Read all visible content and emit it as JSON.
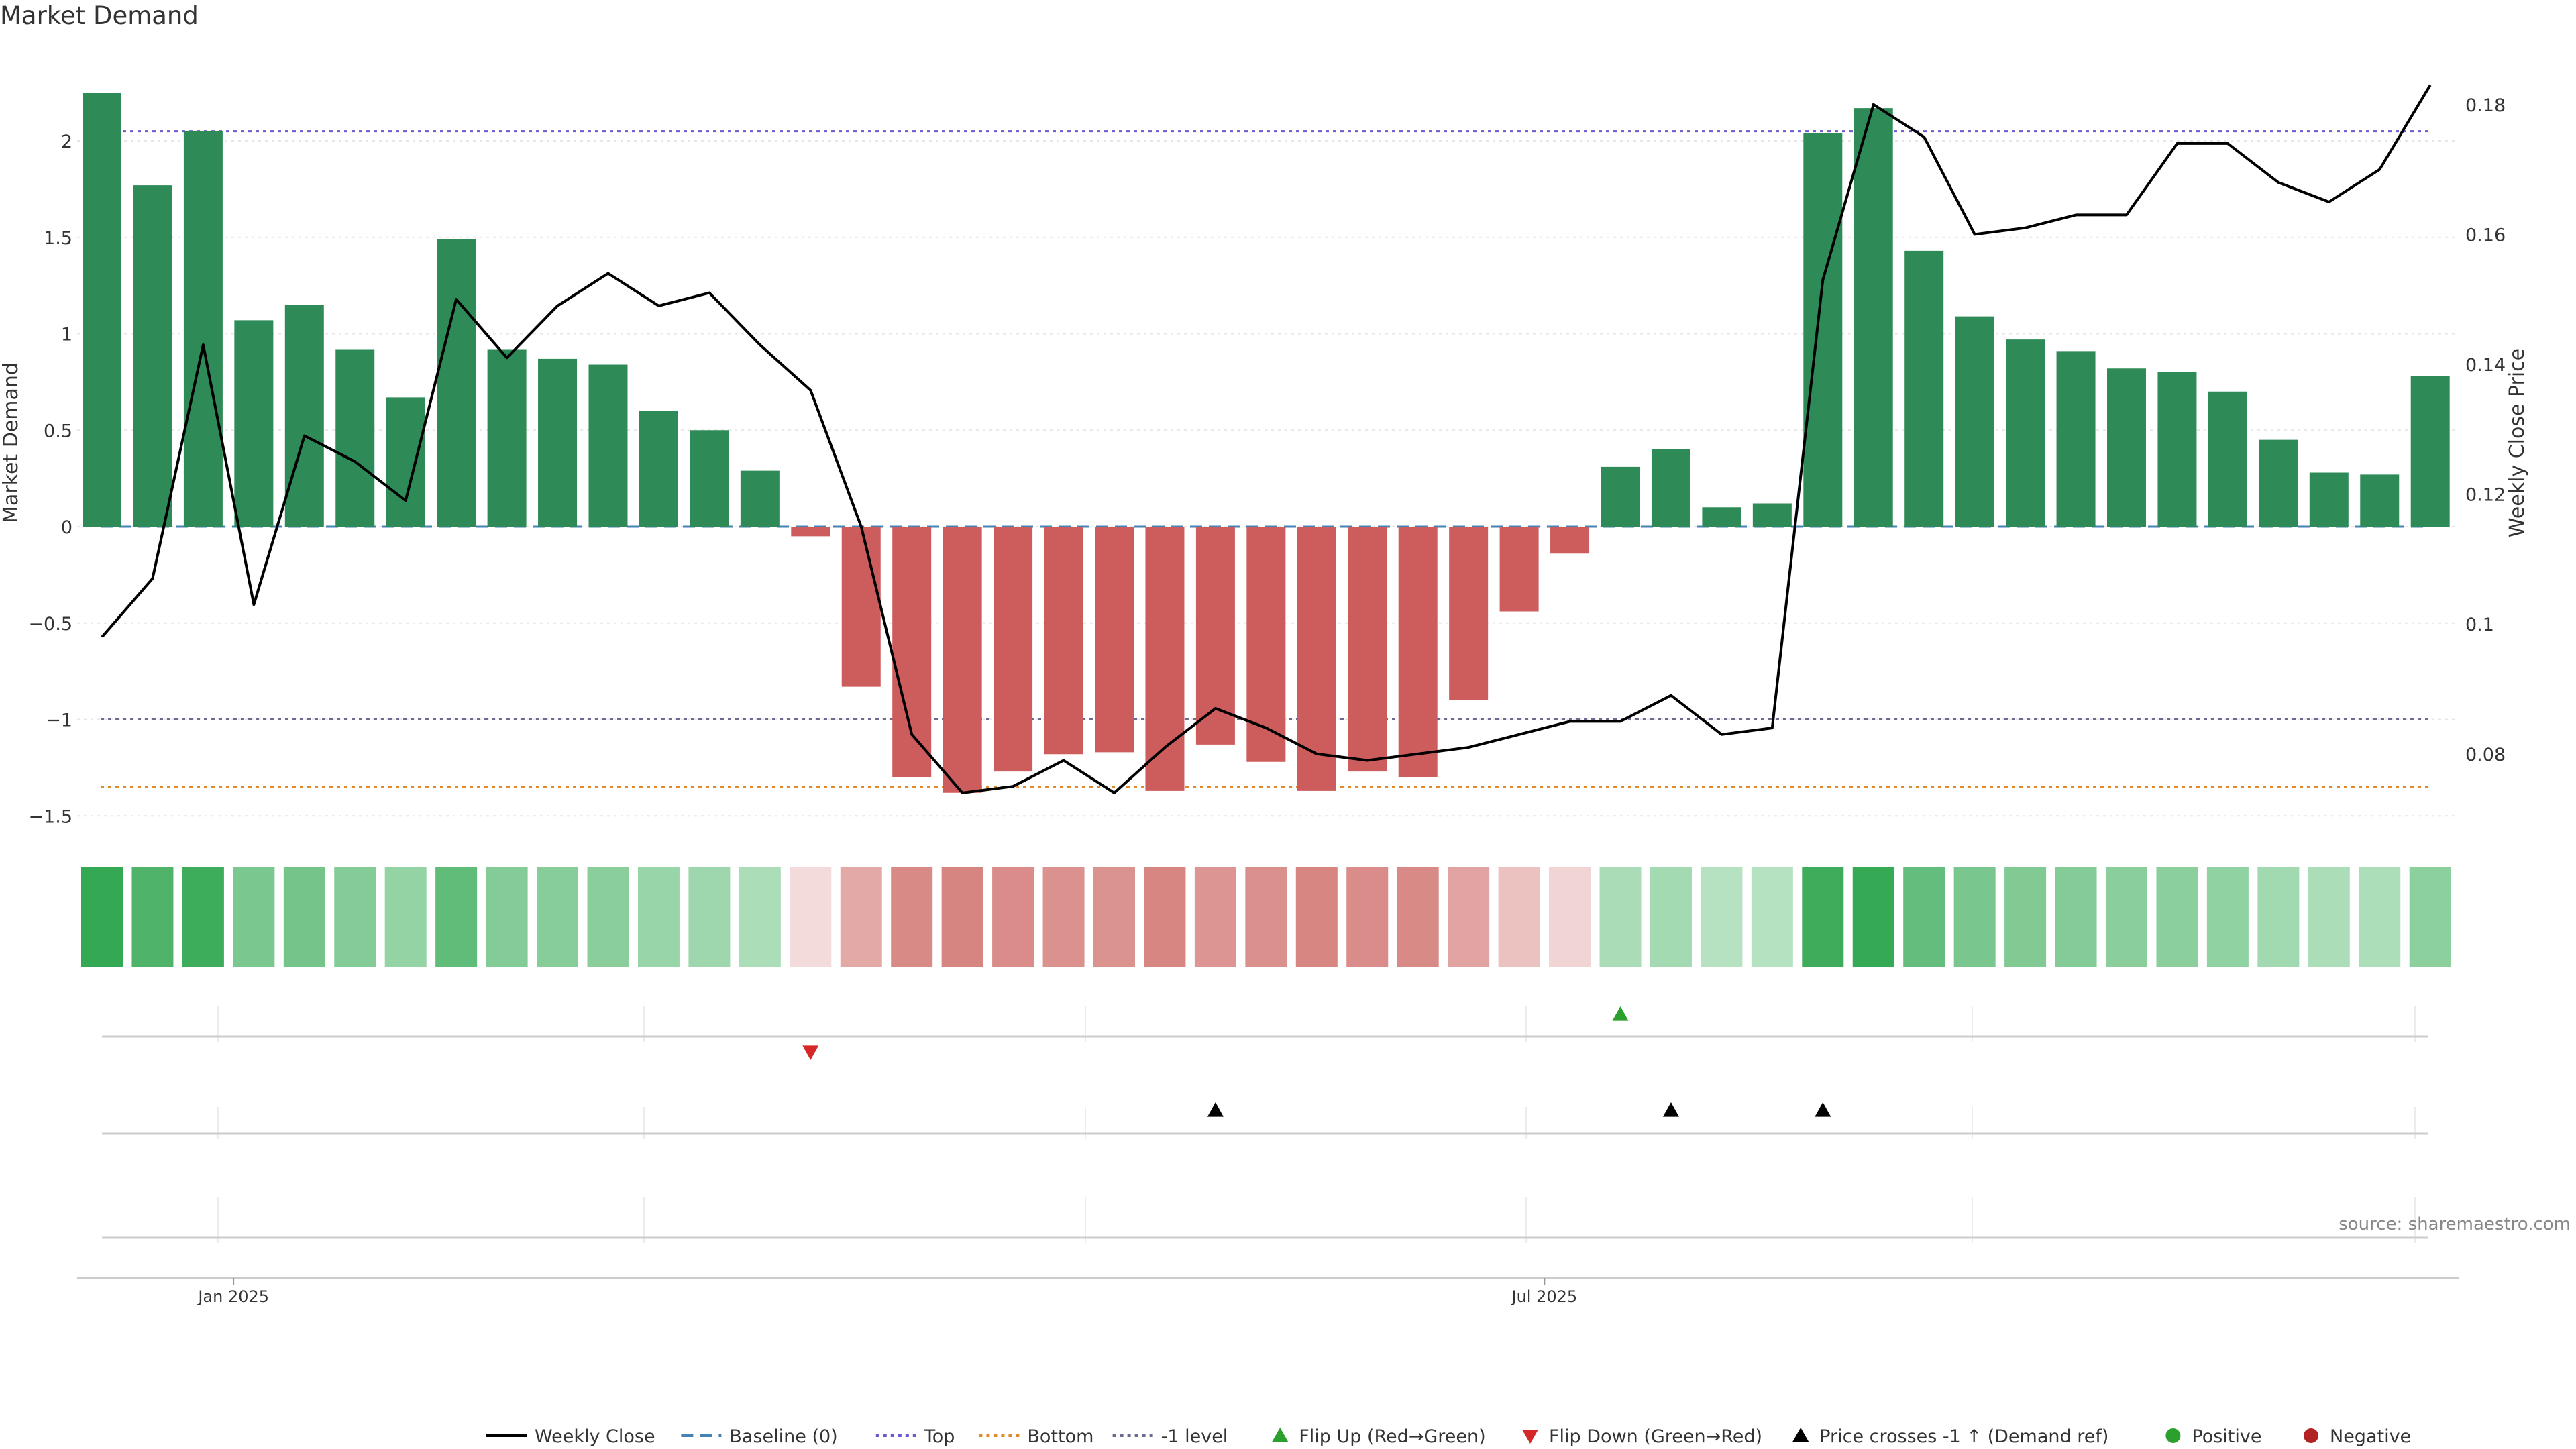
{
  "page_title": "Market Demand",
  "source_note": "source: sharemaestro.com",
  "chart_data": {
    "type": "bar",
    "title": "Market Demand",
    "xlabel": "",
    "ylabel": "Market Demand",
    "y2label": "Weekly Close Price",
    "ylim": [
      -1.75,
      2.3
    ],
    "y2lim": [
      0.068,
      0.186
    ],
    "yticks": [
      "2",
      "1.5",
      "1",
      "0.5",
      "0",
      "−0.5",
      "−1",
      "−1.5"
    ],
    "yticks_values": [
      2,
      1.5,
      1,
      0.5,
      0,
      -0.5,
      -1,
      -1.5
    ],
    "y2ticks": [
      "0.18",
      "0.16",
      "0.14",
      "0.12",
      "0.1",
      "0.08"
    ],
    "y2ticks_values": [
      0.18,
      0.16,
      0.14,
      0.12,
      0.1,
      0.08
    ],
    "xticks": [
      "Jan 2025",
      "Jul 2025"
    ],
    "xticks_week_index": [
      2.6,
      28.5
    ],
    "grid": true,
    "legend_position": "bottom",
    "levels": {
      "top": 2.05,
      "bottom": -1.35,
      "minus_one": -1,
      "baseline": 0
    },
    "weeks_count": 47,
    "demand": [
      2.25,
      1.77,
      2.05,
      1.07,
      1.15,
      0.92,
      0.67,
      1.49,
      0.92,
      0.87,
      0.84,
      0.6,
      0.5,
      0.29,
      -0.05,
      -0.83,
      -1.3,
      -1.38,
      -1.27,
      -1.18,
      -1.17,
      -1.37,
      -1.13,
      -1.22,
      -1.37,
      -1.27,
      -1.3,
      -0.9,
      -0.44,
      -0.14,
      0.31,
      0.4,
      0.1,
      0.12,
      2.04,
      2.17,
      1.43,
      1.09,
      0.97,
      0.91,
      0.82,
      0.8,
      0.7,
      0.45,
      0.28,
      0.27,
      0.78
    ],
    "weekly_close": [
      0.098,
      0.107,
      0.143,
      0.103,
      0.129,
      0.125,
      0.119,
      0.15,
      0.141,
      0.149,
      0.154,
      0.149,
      0.151,
      0.143,
      0.136,
      0.115,
      0.083,
      0.074,
      0.075,
      0.079,
      0.074,
      0.081,
      0.087,
      0.084,
      0.08,
      0.079,
      0.08,
      0.081,
      0.083,
      0.085,
      0.085,
      0.089,
      0.083,
      0.084,
      0.153,
      0.18,
      0.175,
      0.16,
      0.161,
      0.163,
      0.163,
      0.174,
      0.174,
      0.168,
      0.165,
      0.17,
      0.183
    ],
    "flip_up_weeks": [
      30
    ],
    "flip_down_weeks": [
      14
    ],
    "price_cross_weeks": [
      22,
      31,
      34
    ],
    "colors": {
      "positive_bar": "#2e8b57",
      "negative_bar": "#cd5c5c",
      "price_line": "#000000",
      "baseline": "#4682b4",
      "top": "#6a5acd",
      "bottom": "#e08a2c",
      "minus_one": "#6b6b8f",
      "flip_up": "#2ca02c",
      "flip_down": "#d62728",
      "price_cross": "#000000",
      "positive_dot": "#2ca02c",
      "negative_dot": "#b22222"
    },
    "legend": [
      {
        "label": "Weekly Close",
        "kind": "line",
        "color": "#000000"
      },
      {
        "label": "Baseline (0)",
        "kind": "dash",
        "color": "#4682b4"
      },
      {
        "label": "Top",
        "kind": "dot",
        "color": "#6a5acd"
      },
      {
        "label": "Bottom",
        "kind": "dot",
        "color": "#e08a2c"
      },
      {
        "label": "-1 level",
        "kind": "dot",
        "color": "#6b6b8f"
      },
      {
        "label": "Flip Up (Red→Green)",
        "kind": "tri-up",
        "color": "#2ca02c"
      },
      {
        "label": "Flip Down (Green→Red)",
        "kind": "tri-down",
        "color": "#d62728"
      },
      {
        "label": "Price crosses -1 ↑ (Demand ref)",
        "kind": "tri-up",
        "color": "#000000"
      },
      {
        "label": "Positive",
        "kind": "circle",
        "color": "#2ca02c"
      },
      {
        "label": "Negative",
        "kind": "circle",
        "color": "#b22222"
      }
    ]
  }
}
